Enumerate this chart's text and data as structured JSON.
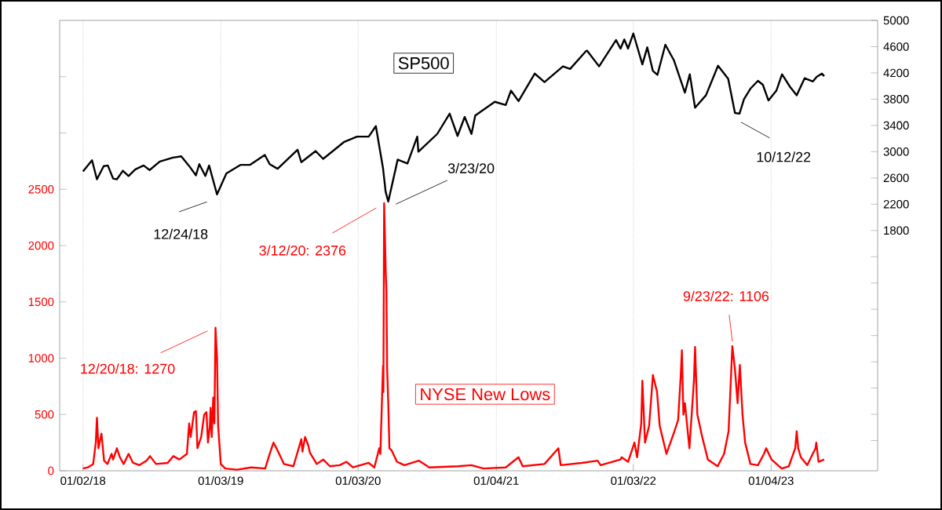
{
  "chart_data": {
    "type": "line",
    "xlim": [
      "2017-11-01",
      "2023-10-14"
    ],
    "xticks": [
      {
        "value": "2018-01-02",
        "label": "01/02/18"
      },
      {
        "value": "2019-01-03",
        "label": "01/03/19"
      },
      {
        "value": "2020-01-03",
        "label": "01/03/20"
      },
      {
        "value": "2021-01-04",
        "label": "01/04/21"
      },
      {
        "value": "2022-01-03",
        "label": "01/03/22"
      },
      {
        "value": "2023-01-04",
        "label": "01/04/23"
      }
    ],
    "ylim": [
      0,
      4000
    ],
    "yticks": [
      0,
      500,
      1000,
      1500,
      2000,
      2500,
      {
        "value": 3000,
        "label": null
      },
      {
        "value": 3500,
        "label": null
      }
    ],
    "y2lim": [
      -1860,
      5000
    ],
    "y2ticks": [
      {
        "value": -1400,
        "label": null
      },
      {
        "value": -1000,
        "label": null
      },
      {
        "value": -600,
        "label": null
      },
      {
        "value": -200,
        "label": null
      },
      {
        "value": 200,
        "label": null
      },
      {
        "value": 600,
        "label": null
      },
      {
        "value": 1000,
        "label": null
      },
      {
        "value": 1400,
        "label": null
      },
      1800,
      2200,
      2600,
      3000,
      3400,
      3800,
      4200,
      4600,
      5000
    ],
    "grid": "x",
    "series": [
      {
        "name": "NYSE New Lows",
        "color": "#ff0000",
        "x": [
          "2018-01-02",
          "2018-01-15",
          "2018-01-29",
          "2018-02-05",
          "2018-02-08",
          "2018-02-12",
          "2018-02-20",
          "2018-02-27",
          "2018-03-08",
          "2018-03-19",
          "2018-03-23",
          "2018-04-02",
          "2018-04-10",
          "2018-04-20",
          "2018-05-03",
          "2018-05-15",
          "2018-06-01",
          "2018-06-20",
          "2018-06-29",
          "2018-07-15",
          "2018-08-15",
          "2018-08-30",
          "2018-09-15",
          "2018-10-05",
          "2018-10-11",
          "2018-10-15",
          "2018-10-24",
          "2018-10-29",
          "2018-11-02",
          "2018-11-12",
          "2018-11-20",
          "2018-11-26",
          "2018-11-30",
          "2018-12-05",
          "2018-12-07",
          "2018-12-10",
          "2018-12-14",
          "2018-12-17",
          "2018-12-20",
          "2018-12-24",
          "2018-12-27",
          "2019-01-03",
          "2019-01-15",
          "2019-02-15",
          "2019-03-25",
          "2019-05-01",
          "2019-05-13",
          "2019-05-23",
          "2019-06-03",
          "2019-06-20",
          "2019-07-15",
          "2019-08-05",
          "2019-08-08",
          "2019-08-15",
          "2019-08-23",
          "2019-08-28",
          "2019-09-15",
          "2019-10-02",
          "2019-10-20",
          "2019-11-15",
          "2019-12-03",
          "2019-12-20",
          "2020-01-10",
          "2020-01-31",
          "2020-02-15",
          "2020-02-28",
          "2020-03-02",
          "2020-03-09",
          "2020-03-10",
          "2020-03-12",
          "2020-03-16",
          "2020-03-18",
          "2020-03-20",
          "2020-03-23",
          "2020-03-26",
          "2020-04-01",
          "2020-04-15",
          "2020-05-05",
          "2020-06-12",
          "2020-07-10",
          "2020-09-25",
          "2020-10-30",
          "2020-12-01",
          "2021-01-29",
          "2021-03-04",
          "2021-03-15",
          "2021-05-12",
          "2021-06-18",
          "2021-06-24",
          "2021-08-19",
          "2021-09-30",
          "2021-10-08",
          "2021-11-30",
          "2021-12-03",
          "2021-12-20",
          "2022-01-06",
          "2022-01-13",
          "2022-01-24",
          "2022-01-27",
          "2022-02-03",
          "2022-02-14",
          "2022-02-24",
          "2022-03-07",
          "2022-03-14",
          "2022-04-01",
          "2022-04-22",
          "2022-05-02",
          "2022-05-09",
          "2022-05-12",
          "2022-05-16",
          "2022-05-20",
          "2022-06-01",
          "2022-06-13",
          "2022-06-16",
          "2022-06-22",
          "2022-07-05",
          "2022-07-20",
          "2022-08-15",
          "2022-09-01",
          "2022-09-13",
          "2022-09-23",
          "2022-09-30",
          "2022-10-07",
          "2022-10-13",
          "2022-10-20",
          "2022-10-27",
          "2022-11-10",
          "2022-11-30",
          "2022-12-16",
          "2022-12-22",
          "2023-01-05",
          "2023-02-01",
          "2023-02-20",
          "2023-03-09",
          "2023-03-13",
          "2023-03-17",
          "2023-03-24",
          "2023-04-10",
          "2023-05-02",
          "2023-05-04",
          "2023-05-10",
          "2023-05-25"
        ],
        "values": [
          20,
          30,
          60,
          250,
          470,
          200,
          330,
          90,
          60,
          150,
          100,
          200,
          120,
          60,
          150,
          70,
          50,
          90,
          130,
          60,
          70,
          130,
          100,
          150,
          420,
          300,
          520,
          530,
          200,
          300,
          500,
          520,
          250,
          400,
          560,
          300,
          650,
          420,
          1270,
          1000,
          400,
          60,
          20,
          10,
          30,
          20,
          150,
          250,
          180,
          60,
          40,
          280,
          170,
          300,
          230,
          160,
          60,
          100,
          40,
          50,
          80,
          30,
          50,
          70,
          30,
          200,
          150,
          930,
          700,
          2376,
          1800,
          1600,
          900,
          600,
          200,
          180,
          80,
          50,
          90,
          30,
          40,
          50,
          20,
          30,
          120,
          40,
          60,
          200,
          50,
          70,
          90,
          50,
          100,
          120,
          80,
          250,
          120,
          420,
          800,
          250,
          400,
          850,
          700,
          400,
          150,
          350,
          450,
          850,
          1070,
          500,
          600,
          200,
          800,
          1100,
          500,
          300,
          100,
          40,
          150,
          350,
          1106,
          900,
          600,
          940,
          500,
          250,
          60,
          50,
          150,
          200,
          100,
          20,
          40,
          200,
          350,
          200,
          120,
          50,
          200,
          250,
          80,
          100
        ]
      },
      {
        "name": "SP500",
        "color": "#000000",
        "axis": "y2",
        "x": [
          "2018-01-02",
          "2018-01-26",
          "2018-02-08",
          "2018-02-26",
          "2018-03-09",
          "2018-03-23",
          "2018-04-02",
          "2018-04-18",
          "2018-05-03",
          "2018-05-21",
          "2018-06-12",
          "2018-06-28",
          "2018-07-25",
          "2018-08-29",
          "2018-09-20",
          "2018-10-10",
          "2018-10-29",
          "2018-11-07",
          "2018-11-23",
          "2018-12-03",
          "2018-12-24",
          "2019-01-18",
          "2019-02-25",
          "2019-03-22",
          "2019-04-30",
          "2019-05-13",
          "2019-06-03",
          "2019-07-26",
          "2019-08-05",
          "2019-09-12",
          "2019-10-02",
          "2019-11-27",
          "2019-12-31",
          "2020-01-31",
          "2020-02-19",
          "2020-03-09",
          "2020-03-16",
          "2020-03-23",
          "2020-04-17",
          "2020-05-13",
          "2020-06-08",
          "2020-06-11",
          "2020-07-31",
          "2020-09-02",
          "2020-09-23",
          "2020-10-12",
          "2020-10-30",
          "2020-11-09",
          "2020-12-31",
          "2021-01-29",
          "2021-02-12",
          "2021-03-04",
          "2021-04-16",
          "2021-05-12",
          "2021-06-30",
          "2021-07-19",
          "2021-08-30",
          "2021-09-02",
          "2021-10-04",
          "2021-11-18",
          "2021-11-30",
          "2021-12-10",
          "2021-12-20",
          "2022-01-03",
          "2022-01-27",
          "2022-02-09",
          "2022-02-24",
          "2022-03-08",
          "2022-03-29",
          "2022-04-21",
          "2022-05-20",
          "2022-06-02",
          "2022-06-16",
          "2022-07-15",
          "2022-08-16",
          "2022-09-12",
          "2022-09-30",
          "2022-10-12",
          "2022-10-24",
          "2022-11-10",
          "2022-11-30",
          "2022-12-13",
          "2022-12-28",
          "2023-01-18",
          "2023-02-02",
          "2023-02-23",
          "2023-03-13",
          "2023-04-03",
          "2023-04-25",
          "2023-05-05",
          "2023-05-19",
          "2023-05-25"
        ],
        "values": [
          2700,
          2870,
          2580,
          2780,
          2790,
          2590,
          2580,
          2710,
          2630,
          2730,
          2790,
          2720,
          2850,
          2910,
          2930,
          2790,
          2640,
          2810,
          2630,
          2790,
          2350,
          2670,
          2800,
          2800,
          2950,
          2810,
          2740,
          3030,
          2840,
          3010,
          2890,
          3150,
          3230,
          3230,
          3390,
          2750,
          2390,
          2240,
          2880,
          2820,
          3230,
          3000,
          3270,
          3580,
          3240,
          3530,
          3270,
          3550,
          3760,
          3710,
          3930,
          3770,
          4190,
          4060,
          4300,
          4260,
          4530,
          4540,
          4300,
          4700,
          4570,
          4710,
          4570,
          4800,
          4330,
          4590,
          4230,
          4170,
          4630,
          4390,
          3900,
          4180,
          3670,
          3860,
          4310,
          4110,
          3590,
          3580,
          3800,
          3960,
          4080,
          4020,
          3780,
          3930,
          4180,
          3990,
          3860,
          4120,
          4070,
          4140,
          4190,
          4150
        ]
      }
    ],
    "annotations": [
      "12/24/18",
      "3/23/20",
      "10/12/22",
      {
        "text": "12/20/18: 1270",
        "x": "2018-12-20",
        "y": 1270
      },
      {
        "text": "3/12/20: 2376",
        "x": "2020-03-12",
        "y": 2376
      },
      {
        "text": "9/23/22: 1106",
        "x": "2022-09-23",
        "y": 1106
      }
    ]
  }
}
